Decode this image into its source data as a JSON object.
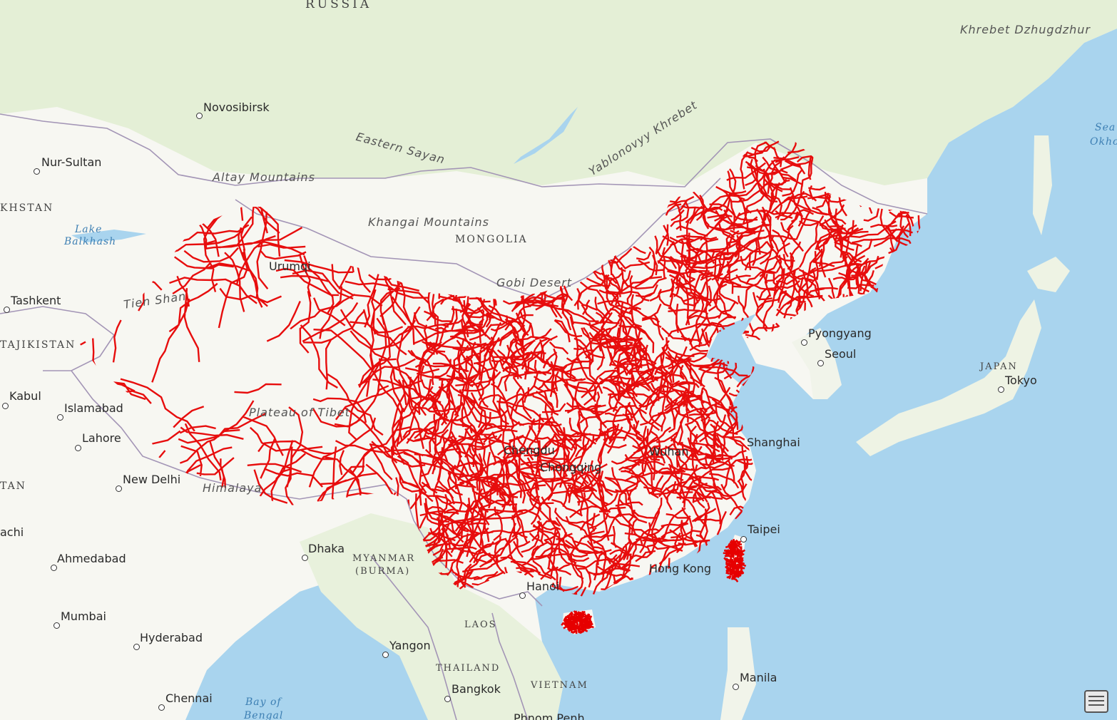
{
  "map": {
    "colors": {
      "ocean": "#a9d4ee",
      "land": "#f7f7f2",
      "vegetation": "#e4efd6",
      "border": "#a395b6",
      "roads": "#e60000"
    },
    "labels": {
      "country_russia": "RUSSIA",
      "country_mongolia": "MONGOLIA",
      "country_kazakhstan_fragment": "KHSTAN",
      "country_tajikistan_fragment": "TAJIKISTAN",
      "country_fragment_tan": "TAN",
      "country_myanmar_1": "MYANMAR",
      "country_myanmar_2": "(BURMA)",
      "country_laos": "LAOS",
      "country_thailand": "THAILAND",
      "country_vietnam": "VIETNAM",
      "country_japan": "JAPAN",
      "phys_khrebet": "Khrebet Dzhugdzhur",
      "phys_eastern_sayan": "Eastern Sayan",
      "phys_yablonovyy": "Yablonovyy Khrebet",
      "phys_altay": "Altay Mountains",
      "phys_khangai": "Khangai Mountains",
      "phys_gobi": "Gobi Desert",
      "phys_tien_shan": "Tien Shan",
      "phys_tibet": "Plateau of Tibet",
      "phys_himalaya": "Himalaya",
      "water_balkhash_1": "Lake",
      "water_balkhash_2": "Balkhash",
      "water_sea_okhotsk_1": "Sea",
      "water_sea_okhotsk_2": "Okho",
      "water_bay_1": "Bay of",
      "water_bay_2": "Bengal"
    },
    "cities": {
      "novosibirsk": "Novosibirsk",
      "nur_sultan": "Nur-Sultan",
      "tashkent": "Tashkent",
      "kabul": "Kabul",
      "islamabad": "Islamabad",
      "lahore": "Lahore",
      "new_delhi": "New Delhi",
      "karachi_fragment": "achi",
      "ahmedabad": "Ahmedabad",
      "mumbai": "Mumbai",
      "hyderabad": "Hyderabad",
      "chennai": "Chennai",
      "dhaka": "Dhaka",
      "yangon": "Yangon",
      "bangkok": "Bangkok",
      "phnom_penh": "Phnom Penh",
      "hanoi": "Hanoi",
      "hong_kong": "Hong Kong",
      "taipei": "Taipei",
      "manila": "Manila",
      "shanghai": "Shanghai",
      "wuhan": "Wuhan",
      "chongqing": "Chongqing",
      "chengdu": "Chengdu",
      "urumqi": "Urumqi",
      "pyongyang": "Pyongyang",
      "seoul": "Seoul",
      "tokyo": "Tokyo"
    },
    "overview_icon": "overview-map-icon"
  }
}
